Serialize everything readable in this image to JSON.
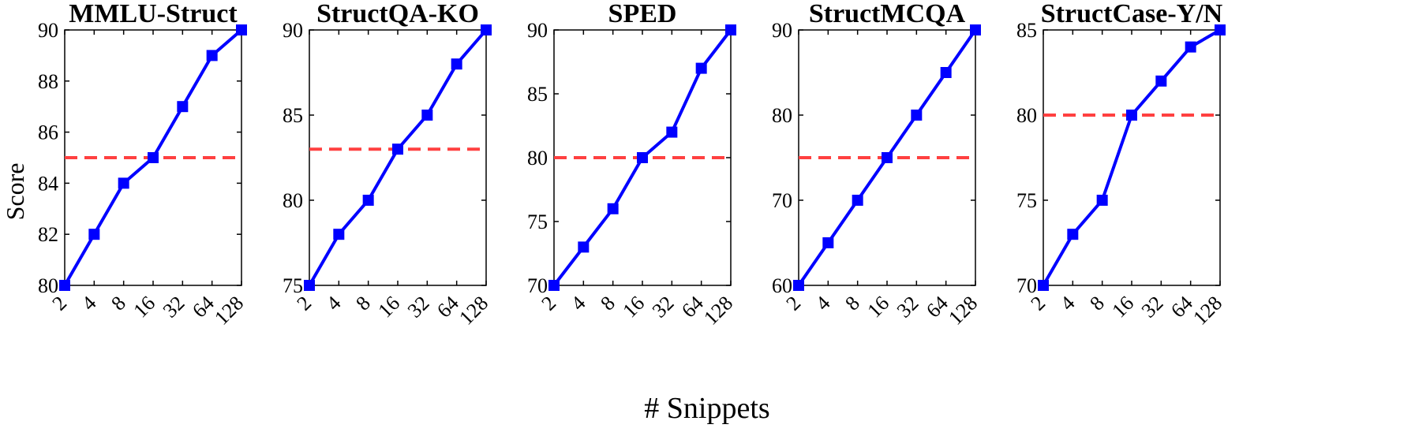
{
  "figure": {
    "ylabel": "Score",
    "xlabel": "# Snippets"
  },
  "style": {
    "line_color": "#0000ff",
    "reference_color": "#ff4040",
    "axis_color": "#000000"
  },
  "chart_data": [
    {
      "type": "line",
      "title": "MMLU-Struct",
      "x": [
        "2",
        "4",
        "8",
        "16",
        "32",
        "64",
        "128"
      ],
      "series": [
        {
          "values": [
            80,
            82,
            84,
            85,
            87,
            89,
            90
          ]
        }
      ],
      "reference_line": 85,
      "ylim": [
        80,
        90
      ],
      "yticks": [
        80,
        82,
        84,
        86,
        88,
        90
      ],
      "grid": false
    },
    {
      "type": "line",
      "title": "StructQA-KO",
      "x": [
        "2",
        "4",
        "8",
        "16",
        "32",
        "64",
        "128"
      ],
      "series": [
        {
          "values": [
            75,
            78,
            80,
            83,
            85,
            88,
            90
          ]
        }
      ],
      "reference_line": 83,
      "ylim": [
        75,
        90
      ],
      "yticks": [
        75,
        80,
        85,
        90
      ],
      "grid": false
    },
    {
      "type": "line",
      "title": "SPED",
      "x": [
        "2",
        "4",
        "8",
        "16",
        "32",
        "64",
        "128"
      ],
      "series": [
        {
          "values": [
            70,
            73,
            76,
            80,
            82,
            87,
            90
          ]
        }
      ],
      "reference_line": 80,
      "ylim": [
        70,
        90
      ],
      "yticks": [
        70,
        75,
        80,
        85,
        90
      ],
      "grid": false
    },
    {
      "type": "line",
      "title": "StructMCQA",
      "x": [
        "2",
        "4",
        "8",
        "16",
        "32",
        "64",
        "128"
      ],
      "series": [
        {
          "values": [
            60,
            65,
            70,
            75,
            80,
            85,
            90
          ]
        }
      ],
      "reference_line": 75,
      "ylim": [
        60,
        90
      ],
      "yticks": [
        60,
        70,
        80,
        90
      ],
      "grid": false
    },
    {
      "type": "line",
      "title": "StructCase-Y/N",
      "x": [
        "2",
        "4",
        "8",
        "16",
        "32",
        "64",
        "128"
      ],
      "series": [
        {
          "values": [
            70,
            73,
            75,
            80,
            82,
            84,
            85
          ]
        }
      ],
      "reference_line": 80,
      "ylim": [
        70,
        85
      ],
      "yticks": [
        70,
        75,
        80,
        85
      ],
      "grid": false
    }
  ]
}
